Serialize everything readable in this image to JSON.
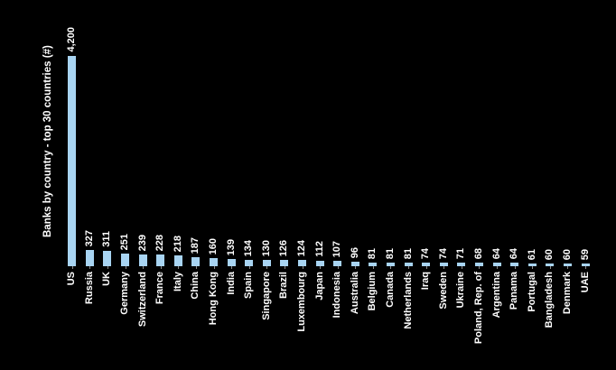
{
  "title": "Banks by country - top 30 countries (#)",
  "colors": {
    "background": "#000000",
    "bar": "#a8d4f2",
    "text": "#ffffff"
  },
  "chart_data": {
    "type": "bar",
    "orientation": "vertical",
    "title": "Banks by country - top 30 countries (#)",
    "xlabel": "",
    "ylabel": "Banks by country - top 30 countries (#)",
    "ylim": [
      0,
      4200
    ],
    "grid": false,
    "legend": false,
    "label_rotation": 90,
    "categories": [
      "US",
      "Russia",
      "UK",
      "Germany",
      "Switzerland",
      "France",
      "Italy",
      "China",
      "Hong Kong",
      "India",
      "Spain",
      "Singapore",
      "Brazil",
      "Luxembourg",
      "Japan",
      "Indonesia",
      "Australia",
      "Belgium",
      "Canada",
      "Netherlands",
      "Iraq",
      "Sweden",
      "Ukraine",
      "Poland, Rep. of",
      "Argentina",
      "Panama",
      "Portugal",
      "Bangladesh",
      "Denmark",
      "UAE"
    ],
    "values": [
      4200,
      327,
      311,
      251,
      239,
      228,
      218,
      187,
      160,
      139,
      134,
      130,
      126,
      124,
      112,
      107,
      96,
      81,
      81,
      81,
      74,
      74,
      71,
      68,
      64,
      64,
      61,
      60,
      60,
      59
    ],
    "value_labels": [
      "4,200",
      "327",
      "311",
      "251",
      "239",
      "228",
      "218",
      "187",
      "160",
      "139",
      "134",
      "130",
      "126",
      "124",
      "112",
      "107",
      "96",
      "81",
      "81",
      "81",
      "74",
      "74",
      "71",
      "68",
      "64",
      "64",
      "61",
      "60",
      "60",
      "59"
    ]
  }
}
